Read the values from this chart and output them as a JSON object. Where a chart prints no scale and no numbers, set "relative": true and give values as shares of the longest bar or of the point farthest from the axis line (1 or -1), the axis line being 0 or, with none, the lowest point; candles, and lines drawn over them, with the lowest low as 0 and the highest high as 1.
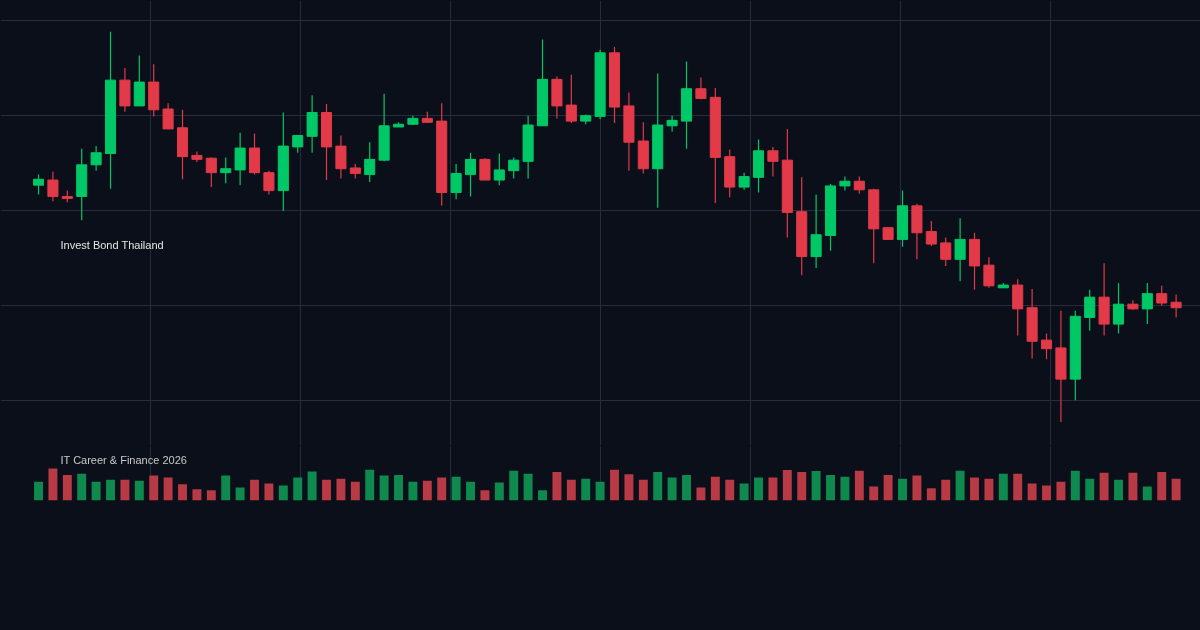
{
  "chart_data": [
    {
      "type": "candlestick",
      "relative": true,
      "grid": true,
      "annotations": [
        "Invest Bond Thailand"
      ],
      "categories": [
        null,
        null,
        null,
        null,
        null,
        null,
        null,
        null,
        null,
        null,
        null,
        null,
        null,
        null,
        null,
        null,
        null,
        null,
        null,
        null,
        null,
        null,
        null,
        null,
        null,
        null,
        null,
        null,
        null,
        null,
        null,
        null,
        null,
        null,
        null,
        null,
        null,
        null,
        null,
        null,
        null,
        null,
        null,
        null,
        null,
        null,
        null,
        null,
        null,
        null,
        null,
        null,
        null,
        null,
        null,
        null,
        null,
        null,
        null,
        null,
        null,
        null,
        null,
        null,
        null,
        null,
        null,
        null,
        null,
        null,
        null,
        null,
        null,
        null,
        null,
        null,
        null,
        null,
        null,
        null
      ],
      "colors": [
        "#00c866",
        "#e23a48",
        "#e23a48",
        "#00c866",
        "#00c866",
        "#00c866",
        "#e23a48",
        "#00c866",
        "#e23a48",
        "#e23a48",
        "#e23a48",
        "#e23a48",
        "#e23a48",
        "#00c866",
        "#00c866",
        "#e23a48",
        "#e23a48",
        "#00c866",
        "#00c866",
        "#00c866",
        "#e23a48",
        "#e23a48",
        "#e23a48",
        "#00c866",
        "#00c866",
        "#00c866",
        "#00c866",
        "#e23a48",
        "#e23a48",
        "#00c866",
        "#00c866",
        "#e23a48",
        "#00c866",
        "#00c866",
        "#00c866",
        "#00c866",
        "#e23a48",
        "#e23a48",
        "#00c866",
        "#00c866",
        "#e23a48",
        "#e23a48",
        "#e23a48",
        "#00c866",
        "#00c866",
        "#00c866",
        "#e23a48",
        "#e23a48",
        "#e23a48",
        "#00c866",
        "#00c866",
        "#e23a48",
        "#e23a48",
        "#e23a48",
        "#00c866",
        "#00c866",
        "#00c866",
        "#e23a48",
        "#e23a48",
        "#e23a48",
        "#00c866",
        "#e23a48",
        "#e23a48",
        "#e23a48",
        "#00c866",
        "#e23a48",
        "#e23a48",
        "#00c866",
        "#e23a48",
        "#e23a48",
        "#e23a48",
        "#e23a48",
        "#00c866",
        "#00c866",
        "#e23a48",
        "#00c866",
        "#e23a48",
        "#00c866",
        "#e23a48",
        "#e23a48"
      ],
      "ohlc": [
        [
          0.607,
          0.634,
          0.583,
          0.622
        ],
        [
          0.62,
          0.641,
          0.566,
          0.578
        ],
        [
          0.578,
          0.593,
          0.563,
          0.573
        ],
        [
          0.578,
          0.7,
          0.517,
          0.659
        ],
        [
          0.659,
          0.707,
          0.644,
          0.69
        ],
        [
          0.688,
          1.0,
          0.598,
          0.876
        ],
        [
          0.876,
          0.907,
          0.795,
          0.81
        ],
        [
          0.81,
          0.939,
          0.81,
          0.871
        ],
        [
          0.871,
          0.917,
          0.783,
          0.8
        ],
        [
          0.802,
          0.817,
          0.751,
          0.751
        ],
        [
          0.754,
          0.8,
          0.622,
          0.68
        ],
        [
          0.683,
          0.693,
          0.666,
          0.673
        ],
        [
          0.676,
          0.678,
          0.602,
          0.639
        ],
        [
          0.639,
          0.678,
          0.612,
          0.649
        ],
        [
          0.646,
          0.741,
          0.607,
          0.702
        ],
        [
          0.702,
          0.739,
          0.634,
          0.639
        ],
        [
          0.639,
          0.644,
          0.583,
          0.593
        ],
        [
          0.593,
          0.793,
          0.541,
          0.707
        ],
        [
          0.705,
          0.734,
          0.69,
          0.734
        ],
        [
          0.732,
          0.837,
          0.69,
          0.793
        ],
        [
          0.793,
          0.815,
          0.62,
          0.705
        ],
        [
          0.707,
          0.734,
          0.624,
          0.649
        ],
        [
          0.651,
          0.661,
          0.624,
          0.637
        ],
        [
          0.634,
          0.717,
          0.615,
          0.673
        ],
        [
          0.671,
          0.841,
          0.668,
          0.759
        ],
        [
          0.756,
          0.768,
          0.756,
          0.763
        ],
        [
          0.763,
          0.785,
          0.761,
          0.778
        ],
        [
          0.778,
          0.795,
          0.766,
          0.768
        ],
        [
          0.771,
          0.817,
          0.554,
          0.588
        ],
        [
          0.588,
          0.661,
          0.571,
          0.637
        ],
        [
          0.634,
          0.69,
          0.578,
          0.673
        ],
        [
          0.673,
          0.676,
          0.62,
          0.62
        ],
        [
          0.62,
          0.688,
          0.607,
          0.646
        ],
        [
          0.644,
          0.678,
          0.624,
          0.671
        ],
        [
          0.668,
          0.785,
          0.624,
          0.761
        ],
        [
          0.759,
          0.98,
          0.759,
          0.878
        ],
        [
          0.878,
          0.885,
          0.778,
          0.81
        ],
        [
          0.812,
          0.89,
          0.766,
          0.771
        ],
        [
          0.771,
          0.788,
          0.763,
          0.785
        ],
        [
          0.783,
          0.954,
          0.776,
          0.946
        ],
        [
          0.946,
          0.961,
          0.766,
          0.807
        ],
        [
          0.81,
          0.844,
          0.644,
          0.717
        ],
        [
          0.72,
          0.768,
          0.637,
          0.649
        ],
        [
          0.649,
          0.893,
          0.549,
          0.761
        ],
        [
          0.759,
          0.785,
          0.744,
          0.773
        ],
        [
          0.771,
          0.924,
          0.7,
          0.854
        ],
        [
          0.854,
          0.883,
          0.827,
          0.829
        ],
        [
          0.832,
          0.856,
          0.561,
          0.678
        ],
        [
          0.68,
          0.698,
          0.576,
          0.602
        ],
        [
          0.602,
          0.639,
          0.595,
          0.629
        ],
        [
          0.627,
          0.724,
          0.588,
          0.695
        ],
        [
          0.695,
          0.705,
          0.629,
          0.668
        ],
        [
          0.671,
          0.751,
          0.473,
          0.537
        ],
        [
          0.539,
          0.627,
          0.376,
          0.424
        ],
        [
          0.424,
          0.583,
          0.395,
          0.48
        ],
        [
          0.478,
          0.61,
          0.439,
          0.605
        ],
        [
          0.605,
          0.629,
          0.593,
          0.617
        ],
        [
          0.617,
          0.629,
          0.585,
          0.595
        ],
        [
          0.595,
          0.598,
          0.407,
          0.495
        ],
        [
          0.498,
          0.498,
          0.468,
          0.468
        ],
        [
          0.468,
          0.593,
          0.449,
          0.554
        ],
        [
          0.554,
          0.559,
          0.417,
          0.485
        ],
        [
          0.488,
          0.515,
          0.451,
          0.456
        ],
        [
          0.459,
          0.473,
          0.4,
          0.417
        ],
        [
          0.417,
          0.522,
          0.361,
          0.468
        ],
        [
          0.468,
          0.485,
          0.339,
          0.4
        ],
        [
          0.402,
          0.422,
          0.344,
          0.349
        ],
        [
          0.344,
          0.356,
          0.344,
          0.351
        ],
        [
          0.351,
          0.366,
          0.222,
          0.29
        ],
        [
          0.293,
          0.341,
          0.163,
          0.207
        ],
        [
          0.21,
          0.227,
          0.161,
          0.188
        ],
        [
          0.19,
          0.285,
          0.0,
          0.11
        ],
        [
          0.11,
          0.285,
          0.056,
          0.271
        ],
        [
          0.268,
          0.339,
          0.234,
          0.32
        ],
        [
          0.32,
          0.407,
          0.222,
          0.251
        ],
        [
          0.251,
          0.356,
          0.227,
          0.302
        ],
        [
          0.302,
          0.312,
          0.288,
          0.29
        ],
        [
          0.29,
          0.356,
          0.251,
          0.329
        ],
        [
          0.329,
          0.349,
          0.298,
          0.305
        ],
        [
          0.307,
          0.327,
          0.268,
          0.293
        ]
      ]
    },
    {
      "type": "bar",
      "relative": true,
      "grid": true,
      "annotations": [
        "IT Career & Finance 2026"
      ],
      "categories": [
        null,
        null,
        null,
        null,
        null,
        null,
        null,
        null,
        null,
        null,
        null,
        null,
        null,
        null,
        null,
        null,
        null,
        null,
        null,
        null,
        null,
        null,
        null,
        null,
        null,
        null,
        null,
        null,
        null,
        null,
        null,
        null,
        null,
        null,
        null,
        null,
        null,
        null,
        null,
        null,
        null,
        null,
        null,
        null,
        null,
        null,
        null,
        null,
        null,
        null,
        null,
        null,
        null,
        null,
        null,
        null,
        null,
        null,
        null,
        null,
        null,
        null,
        null,
        null,
        null,
        null,
        null,
        null,
        null,
        null,
        null,
        null,
        null,
        null,
        null,
        null,
        null,
        null,
        null,
        null
      ],
      "values": [
        0.59,
        1,
        0.8,
        0.84,
        0.59,
        0.65,
        0.65,
        0.62,
        0.78,
        0.72,
        0.51,
        0.35,
        0.32,
        0.78,
        0.41,
        0.65,
        0.53,
        0.47,
        0.72,
        0.91,
        0.65,
        0.68,
        0.59,
        0.96,
        0.78,
        0.8,
        0.59,
        0.62,
        0.72,
        0.74,
        0.59,
        0.32,
        0.56,
        0.93,
        0.84,
        0.32,
        0.89,
        0.65,
        0.68,
        0.59,
        0.96,
        0.82,
        0.65,
        0.89,
        0.72,
        0.8,
        0.41,
        0.74,
        0.65,
        0.53,
        0.72,
        0.72,
        0.95,
        0.89,
        0.92,
        0.8,
        0.74,
        0.93,
        0.44,
        0.8,
        0.68,
        0.78,
        0.38,
        0.65,
        0.93,
        0.72,
        0.68,
        0.84,
        0.84,
        0.53,
        0.47,
        0.59,
        0.93,
        0.68,
        0.87,
        0.65,
        0.87,
        0.44,
        0.89,
        0.68
      ],
      "colors": [
        "#0f8a4e",
        "#b83a44",
        "#b83a44",
        "#0f8a4e",
        "#0f8a4e",
        "#0f8a4e",
        "#b83a44",
        "#0f8a4e",
        "#b83a44",
        "#b83a44",
        "#b83a44",
        "#b83a44",
        "#b83a44",
        "#0f8a4e",
        "#0f8a4e",
        "#b83a44",
        "#b83a44",
        "#0f8a4e",
        "#0f8a4e",
        "#0f8a4e",
        "#b83a44",
        "#b83a44",
        "#b83a44",
        "#0f8a4e",
        "#0f8a4e",
        "#0f8a4e",
        "#0f8a4e",
        "#b83a44",
        "#b83a44",
        "#0f8a4e",
        "#0f8a4e",
        "#b83a44",
        "#0f8a4e",
        "#0f8a4e",
        "#0f8a4e",
        "#0f8a4e",
        "#b83a44",
        "#b83a44",
        "#0f8a4e",
        "#0f8a4e",
        "#b83a44",
        "#b83a44",
        "#b83a44",
        "#0f8a4e",
        "#0f8a4e",
        "#0f8a4e",
        "#b83a44",
        "#b83a44",
        "#b83a44",
        "#0f8a4e",
        "#0f8a4e",
        "#b83a44",
        "#b83a44",
        "#b83a44",
        "#0f8a4e",
        "#0f8a4e",
        "#0f8a4e",
        "#b83a44",
        "#b83a44",
        "#b83a44",
        "#0f8a4e",
        "#b83a44",
        "#b83a44",
        "#b83a44",
        "#0f8a4e",
        "#b83a44",
        "#b83a44",
        "#0f8a4e",
        "#b83a44",
        "#b83a44",
        "#b83a44",
        "#b83a44",
        "#0f8a4e",
        "#0f8a4e",
        "#b83a44",
        "#0f8a4e",
        "#b83a44",
        "#0f8a4e",
        "#b83a44",
        "#b83a44"
      ]
    }
  ]
}
